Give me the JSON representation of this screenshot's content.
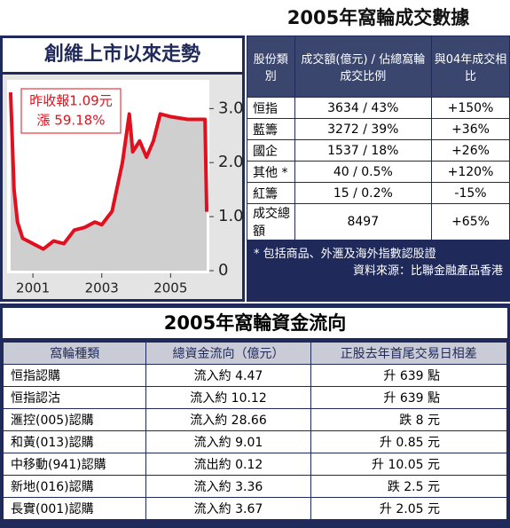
{
  "chart_data": {
    "type": "line",
    "title": "創維上市以來走勢",
    "annotation": [
      "昨收報1.09元",
      "漲 59.18%"
    ],
    "x": [
      2000.35,
      2000.45,
      2000.55,
      2000.7,
      2001.0,
      2001.3,
      2001.6,
      2001.9,
      2002.2,
      2002.5,
      2002.8,
      2003.0,
      2003.3,
      2003.6,
      2003.8,
      2003.9,
      2004.1,
      2004.3,
      2004.5,
      2004.7,
      2005.0,
      2005.5,
      2006.0,
      2006.05
    ],
    "values": [
      3.3,
      1.5,
      0.9,
      0.6,
      0.5,
      0.4,
      0.55,
      0.5,
      0.75,
      0.8,
      0.9,
      0.85,
      1.1,
      2.0,
      2.9,
      2.2,
      2.4,
      2.1,
      2.4,
      2.9,
      2.85,
      2.8,
      2.8,
      1.09
    ],
    "color": "#e0101e",
    "area_color": "#cfcfcf",
    "xlim": [
      2000.3,
      2006.1
    ],
    "xticks": [
      2001,
      2003,
      2005
    ],
    "ylim": [
      0,
      3.4
    ],
    "yticks": [
      0,
      {
        "value": 1,
        "label": "1.0"
      },
      {
        "value": 2,
        "label": "2.0"
      },
      {
        "value": 3,
        "label": "3.0"
      }
    ]
  },
  "turnover_table": {
    "title": "2005年窩輪成交數據",
    "header": [
      "股份類別",
      "成交額(億元) / 佔總窩輪成交比例",
      "與04年成交相比"
    ],
    "rows": [
      [
        "恒指",
        "3634 / 43%",
        "+150%"
      ],
      [
        "藍籌",
        "3272 / 39%",
        "+36%"
      ],
      [
        "國企",
        "1537 / 18%",
        "+26%"
      ],
      [
        "其他 *",
        "40 / 0.5%",
        "+120%"
      ],
      [
        "紅籌",
        "15 / 0.2%",
        "-15%"
      ],
      [
        "成交總額",
        "8497",
        "+65%"
      ]
    ],
    "footnote": "* 包括商品、外滙及海外指數認股證",
    "source": "資料來源：比聯金融產品香港"
  },
  "flow_table": {
    "title": "2005年窩輪資金流向",
    "header": [
      "窩輪種類",
      "總資金流向（億元）",
      "正股去年首尾交易日相差"
    ],
    "rows": [
      [
        "恒指認購",
        "流入約 4.47",
        "升 639 點"
      ],
      [
        "恒指認沽",
        "流入約 10.12",
        "升 639 點"
      ],
      [
        "滙控(005)認購",
        "流入約 28.66",
        "跌 8 元"
      ],
      [
        "和黃(013)認購",
        "流入約 9.01",
        "升 0.85 元"
      ],
      [
        "中移動(941)認購",
        "流出約 0.12",
        "升 10.05 元"
      ],
      [
        "新地(016)認購",
        "流入約 3.36",
        "跌 2.5 元"
      ],
      [
        "長實(001)認購",
        "流入約 3.67",
        "升 2.05 元"
      ]
    ]
  }
}
